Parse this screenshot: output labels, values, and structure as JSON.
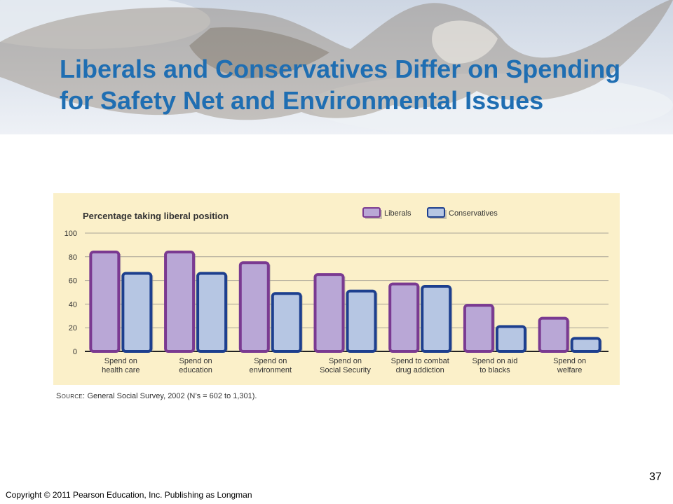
{
  "slide": {
    "title": "Liberals and Conservatives Differ on Spending for Safety Net and Environmental Issues",
    "source_prefix": "Source:",
    "source_text": "General Social Survey, 2002 (N’s = 602 to 1,301).",
    "copyright": "Copyright © 2011 Pearson Education, Inc. Publishing as Longman",
    "page_number": "37"
  },
  "colors": {
    "title": "#1f6eb2",
    "chart_background": "#fbf0c9",
    "liberals_fill": "#b9a7d6",
    "liberals_stroke": "#7a3a91",
    "conservatives_fill": "#b6c6e3",
    "conservatives_stroke": "#1d3f8e"
  },
  "chart_data": {
    "type": "bar",
    "title": "Percentage taking liberal position",
    "xlabel": "",
    "ylabel": "",
    "ylim": [
      0,
      100
    ],
    "yticks": [
      0,
      20,
      40,
      60,
      80,
      100
    ],
    "grid": true,
    "legend_position": "top-right",
    "categories": [
      [
        "Spend on",
        "health care"
      ],
      [
        "Spend on",
        "education"
      ],
      [
        "Spend on",
        "environment"
      ],
      [
        "Spend on",
        "Social Security"
      ],
      [
        "Spend to combat",
        "drug addiction"
      ],
      [
        "Spend on aid",
        "to blacks"
      ],
      [
        "Spend on",
        "welfare"
      ]
    ],
    "series": [
      {
        "name": "Liberals",
        "values": [
          84,
          84,
          75,
          65,
          57,
          39,
          28
        ]
      },
      {
        "name": "Conservatives",
        "values": [
          66,
          66,
          49,
          51,
          55,
          21,
          11
        ]
      }
    ]
  }
}
